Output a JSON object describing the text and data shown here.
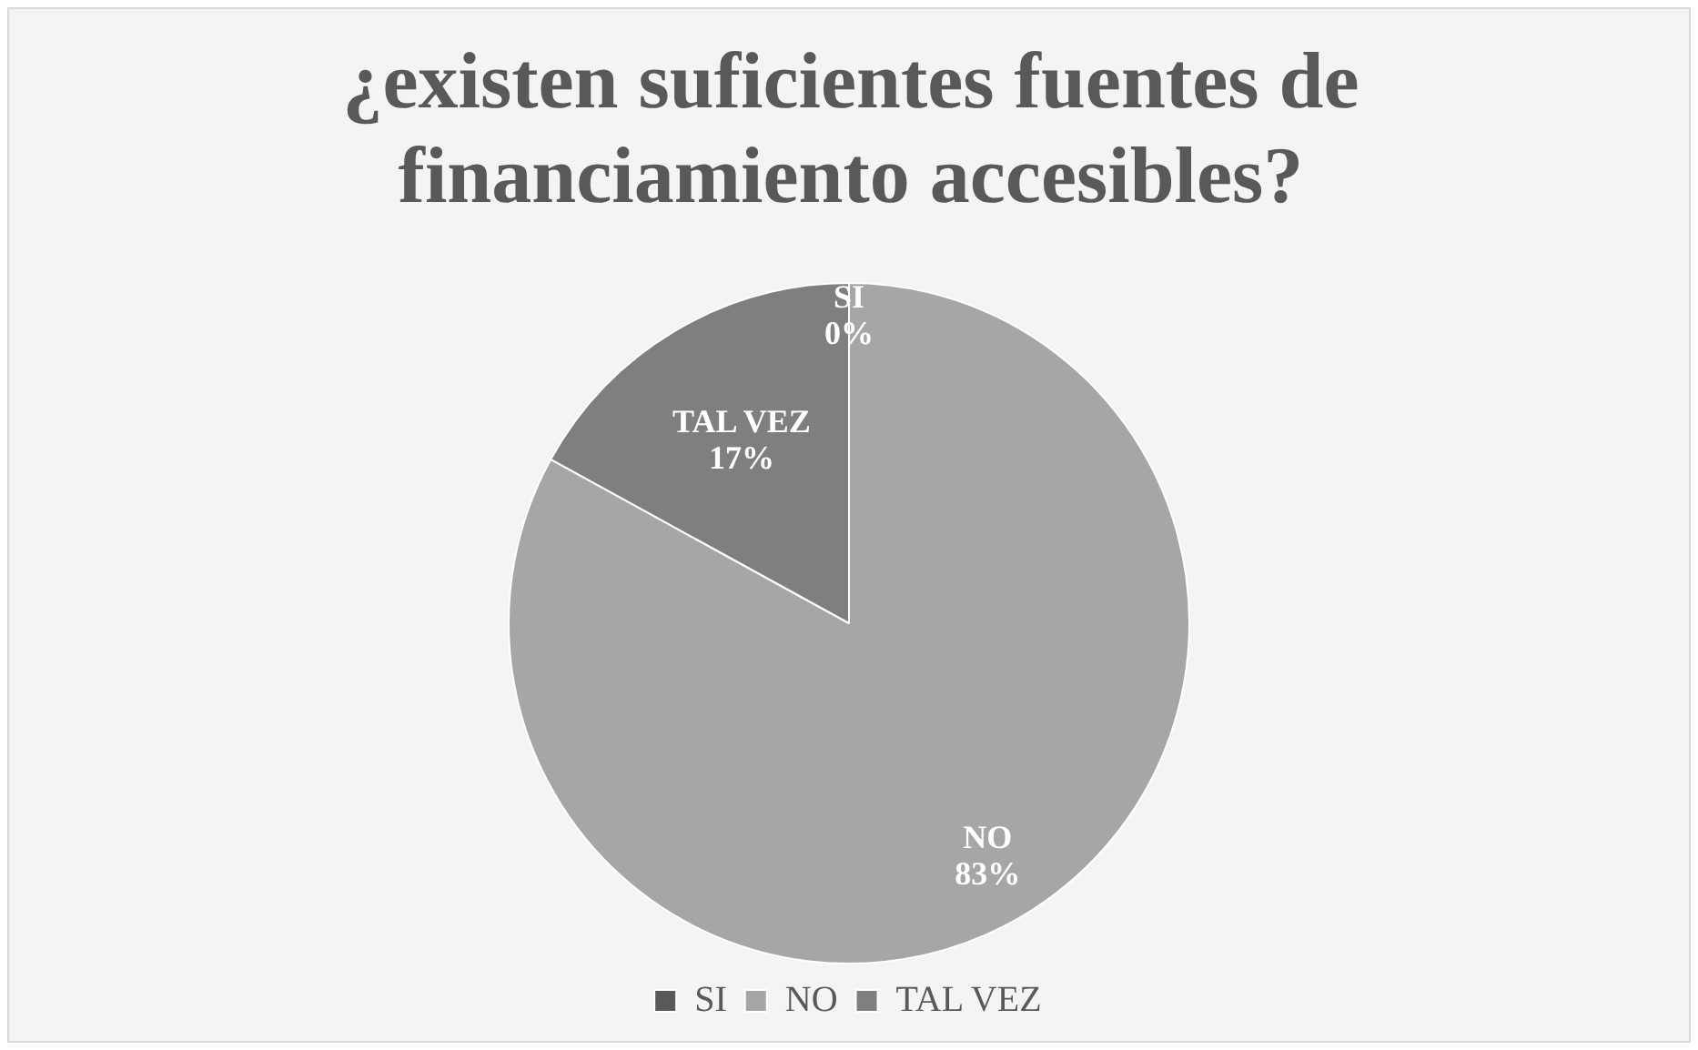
{
  "chart_data": {
    "type": "pie",
    "title": "¿existen suficientes fuentes de financiamiento accesibles?",
    "categories": [
      "SI",
      "NO",
      "TAL VEZ"
    ],
    "values": [
      0,
      83,
      17
    ],
    "colors": [
      "#595959",
      "#a6a6a6",
      "#7f7f7f"
    ],
    "value_labels": [
      "0%",
      "83%",
      "17%"
    ],
    "legend": "bottom"
  }
}
